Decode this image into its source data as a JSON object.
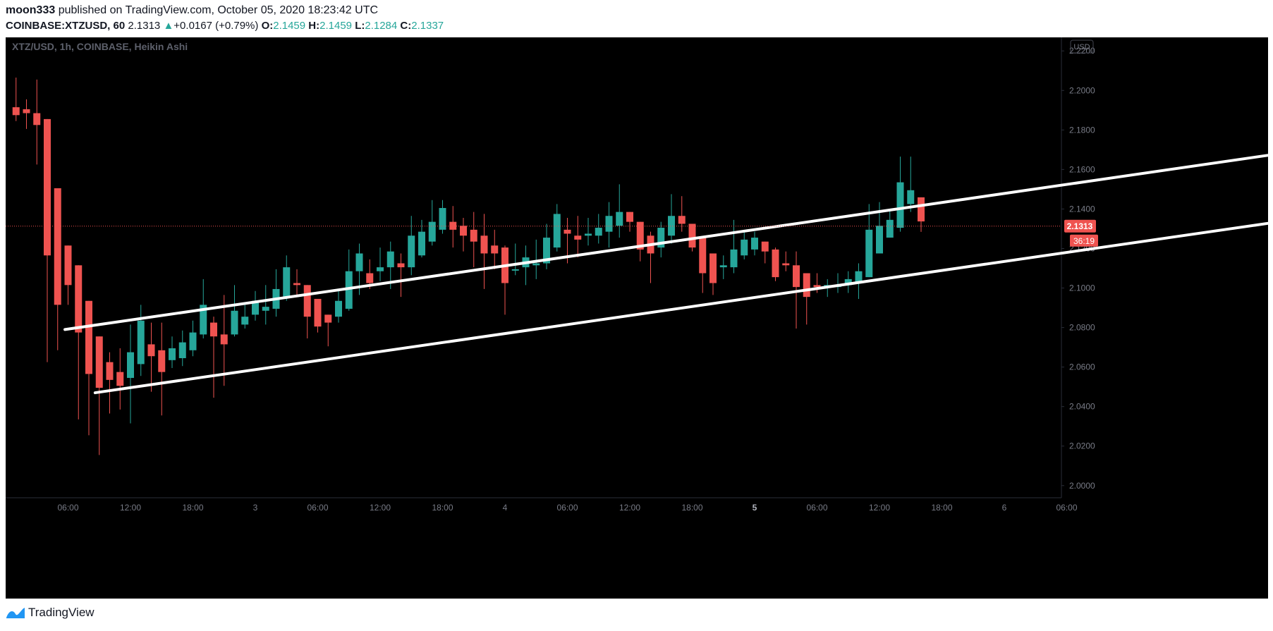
{
  "header": {
    "author": "moon333",
    "published_text": "published on TradingView.com, October 05, 2020 18:23:42 UTC",
    "symbol": "COINBASE:XTZUSD, 60",
    "last": "2.1313",
    "change_arrow": "▲",
    "change": "+0.0167 (+0.79%)",
    "o_label": "O:",
    "o": "2.1459",
    "h_label": "H:",
    "h": "2.1459",
    "l_label": "L:",
    "l": "2.1284",
    "c_label": "C:",
    "c": "2.1337"
  },
  "footer": {
    "brand": "TradingView",
    "logo_icon": "tradingview-logo-icon"
  },
  "colors": {
    "up": "#26a69a",
    "down": "#ef5350",
    "background": "#000000",
    "text_muted": "#787b86",
    "trendline": "#ffffff",
    "price_line": "#ef5350"
  },
  "chart_data": {
    "type": "candlestick",
    "title": "XTZ/USD, 1h, COINBASE, Heikin Ashi",
    "currency": "USD",
    "ylim": [
      1.996,
      2.224
    ],
    "y_ticks": [
      "2.2200",
      "2.2000",
      "2.1800",
      "2.1600",
      "2.1400",
      "2.1200",
      "2.1000",
      "2.0800",
      "2.0600",
      "2.0400",
      "2.0200",
      "2.0000"
    ],
    "x_ticks": [
      "06:00",
      "12:00",
      "18:00",
      "3",
      "06:00",
      "12:00",
      "18:00",
      "4",
      "06:00",
      "12:00",
      "18:00",
      "5",
      "06:00",
      "12:00",
      "18:00",
      "6",
      "06:00"
    ],
    "bold_x_ticks": [
      "5"
    ],
    "first_hour": 1.0,
    "price_label": "2.1313",
    "countdown": "36:19",
    "last_price": 2.1313,
    "candles": [
      [
        2.1915,
        2.2065,
        2.1845,
        2.1875
      ],
      [
        2.1905,
        2.1955,
        2.1805,
        2.1885
      ],
      [
        2.1885,
        2.2055,
        2.1625,
        2.1825
      ],
      [
        2.1855,
        2.1855,
        2.0625,
        2.1165
      ],
      [
        2.1505,
        2.1505,
        2.0685,
        2.0915
      ],
      [
        2.1215,
        2.1215,
        2.0915,
        2.1015
      ],
      [
        2.1115,
        2.1115,
        2.0335,
        2.0775
      ],
      [
        2.0935,
        2.0935,
        2.0255,
        2.0565
      ],
      [
        2.0755,
        2.0755,
        2.0155,
        2.0495
      ],
      [
        2.0625,
        2.0675,
        2.0365,
        2.0535
      ],
      [
        2.0575,
        2.0695,
        2.0385,
        2.0505
      ],
      [
        2.0545,
        2.0815,
        2.0315,
        2.0675
      ],
      [
        2.0615,
        2.0915,
        2.0555,
        2.0835
      ],
      [
        2.0715,
        2.0825,
        2.0475,
        2.0655
      ],
      [
        2.0685,
        2.0825,
        2.0355,
        2.0575
      ],
      [
        2.0635,
        2.0755,
        2.0595,
        2.0695
      ],
      [
        2.0645,
        2.0785,
        2.0605,
        2.0725
      ],
      [
        2.0685,
        2.0835,
        2.0655,
        2.0775
      ],
      [
        2.0765,
        2.1045,
        2.0745,
        2.0915
      ],
      [
        2.0825,
        2.0855,
        2.0445,
        2.0755
      ],
      [
        2.0765,
        2.0965,
        2.0505,
        2.0715
      ],
      [
        2.0765,
        2.1015,
        2.0755,
        2.0885
      ],
      [
        2.0815,
        2.0915,
        2.0795,
        2.0855
      ],
      [
        2.0865,
        2.0985,
        2.0835,
        2.0935
      ],
      [
        2.0885,
        2.1015,
        2.0815,
        2.0905
      ],
      [
        2.0895,
        2.1095,
        2.0855,
        2.0995
      ],
      [
        2.0955,
        2.1165,
        2.0935,
        2.1105
      ],
      [
        2.1025,
        2.1095,
        2.0955,
        2.1015
      ],
      [
        2.1015,
        2.1015,
        2.0745,
        2.0855
      ],
      [
        2.0945,
        2.0945,
        2.0775,
        2.0805
      ],
      [
        2.0865,
        2.0865,
        2.0705,
        2.0825
      ],
      [
        2.0855,
        2.0985,
        2.0825,
        2.0935
      ],
      [
        2.0895,
        2.1195,
        2.0885,
        2.1085
      ],
      [
        2.1085,
        2.1225,
        2.0965,
        2.1175
      ],
      [
        2.1075,
        2.1145,
        2.0995,
        2.1025
      ],
      [
        2.1085,
        2.1205,
        2.1035,
        2.1105
      ],
      [
        2.1105,
        2.1235,
        2.0995,
        2.1185
      ],
      [
        2.1125,
        2.1175,
        2.0955,
        2.1105
      ],
      [
        2.1105,
        2.1365,
        2.1065,
        2.1265
      ],
      [
        2.1165,
        2.1345,
        2.1155,
        2.1285
      ],
      [
        2.1235,
        2.1445,
        2.1215,
        2.1335
      ],
      [
        2.1295,
        2.1445,
        2.1275,
        2.1405
      ],
      [
        2.1335,
        2.1415,
        2.1205,
        2.1295
      ],
      [
        2.1315,
        2.1355,
        2.1185,
        2.1265
      ],
      [
        2.1295,
        2.1385,
        2.1105,
        2.1235
      ],
      [
        2.1265,
        2.1375,
        2.0995,
        2.1175
      ],
      [
        2.1215,
        2.1295,
        2.1095,
        2.1175
      ],
      [
        2.1205,
        2.1215,
        2.0865,
        2.1025
      ],
      [
        2.1095,
        2.1225,
        2.1065,
        2.1095
      ],
      [
        2.1105,
        2.1215,
        2.1015,
        2.1155
      ],
      [
        2.1115,
        2.1245,
        2.1045,
        2.1125
      ],
      [
        2.1125,
        2.1325,
        2.1095,
        2.1255
      ],
      [
        2.1205,
        2.1425,
        2.1185,
        2.1375
      ],
      [
        2.1295,
        2.1355,
        2.1125,
        2.1275
      ],
      [
        2.1265,
        2.1365,
        2.1155,
        2.1245
      ],
      [
        2.1265,
        2.1355,
        2.1215,
        2.1275
      ],
      [
        2.1265,
        2.1375,
        2.1225,
        2.1305
      ],
      [
        2.1285,
        2.1435,
        2.1205,
        2.1365
      ],
      [
        2.1315,
        2.1525,
        2.1255,
        2.1385
      ],
      [
        2.1385,
        2.1385,
        2.1285,
        2.1335
      ],
      [
        2.1335,
        2.1335,
        2.1135,
        2.1195
      ],
      [
        2.1265,
        2.1285,
        2.1025,
        2.1175
      ],
      [
        2.1205,
        2.1335,
        2.1155,
        2.1305
      ],
      [
        2.1265,
        2.1475,
        2.1225,
        2.1365
      ],
      [
        2.1365,
        2.1465,
        2.1285,
        2.1325
      ],
      [
        2.1325,
        2.1325,
        2.1185,
        2.1205
      ],
      [
        2.1255,
        2.1255,
        2.0975,
        2.1075
      ],
      [
        2.1175,
        2.1175,
        2.0965,
        2.1025
      ],
      [
        2.1105,
        2.1165,
        2.1045,
        2.1115
      ],
      [
        2.1105,
        2.1345,
        2.1075,
        2.1195
      ],
      [
        2.1165,
        2.1285,
        2.1145,
        2.1245
      ],
      [
        2.1195,
        2.1285,
        2.1165,
        2.1255
      ],
      [
        2.1235,
        2.1235,
        2.1125,
        2.1185
      ],
      [
        2.1195,
        2.1205,
        2.1035,
        2.1055
      ],
      [
        2.1125,
        2.1185,
        2.1085,
        2.1115
      ],
      [
        2.1115,
        2.1185,
        2.0795,
        2.1005
      ],
      [
        2.1075,
        2.1075,
        2.0815,
        2.0955
      ],
      [
        2.1015,
        2.1075,
        2.0975,
        2.1005
      ],
      [
        2.1005,
        2.1045,
        2.0955,
        2.1015
      ],
      [
        2.1005,
        2.1075,
        2.0975,
        2.1015
      ],
      [
        2.1015,
        2.1085,
        2.0975,
        2.1045
      ],
      [
        2.1025,
        2.1125,
        2.0945,
        2.1085
      ],
      [
        2.1055,
        2.1425,
        2.1055,
        2.1295
      ],
      [
        2.1175,
        2.1435,
        2.1175,
        2.1315
      ],
      [
        2.1255,
        2.1395,
        2.1255,
        2.1345
      ],
      [
        2.1305,
        2.1665,
        2.1285,
        2.1535
      ],
      [
        2.1425,
        2.1665,
        2.1385,
        2.1495
      ],
      [
        2.1459,
        2.1459,
        2.1284,
        2.1337
      ]
    ],
    "trendlines": [
      {
        "name": "upper-channel",
        "t1": 5.7,
        "p1": 2.079,
        "t2": 148.0,
        "p2": 2.1875
      },
      {
        "name": "lower-channel",
        "t1": 8.6,
        "p1": 2.047,
        "t2": 151.3,
        "p2": 2.1555
      }
    ]
  }
}
